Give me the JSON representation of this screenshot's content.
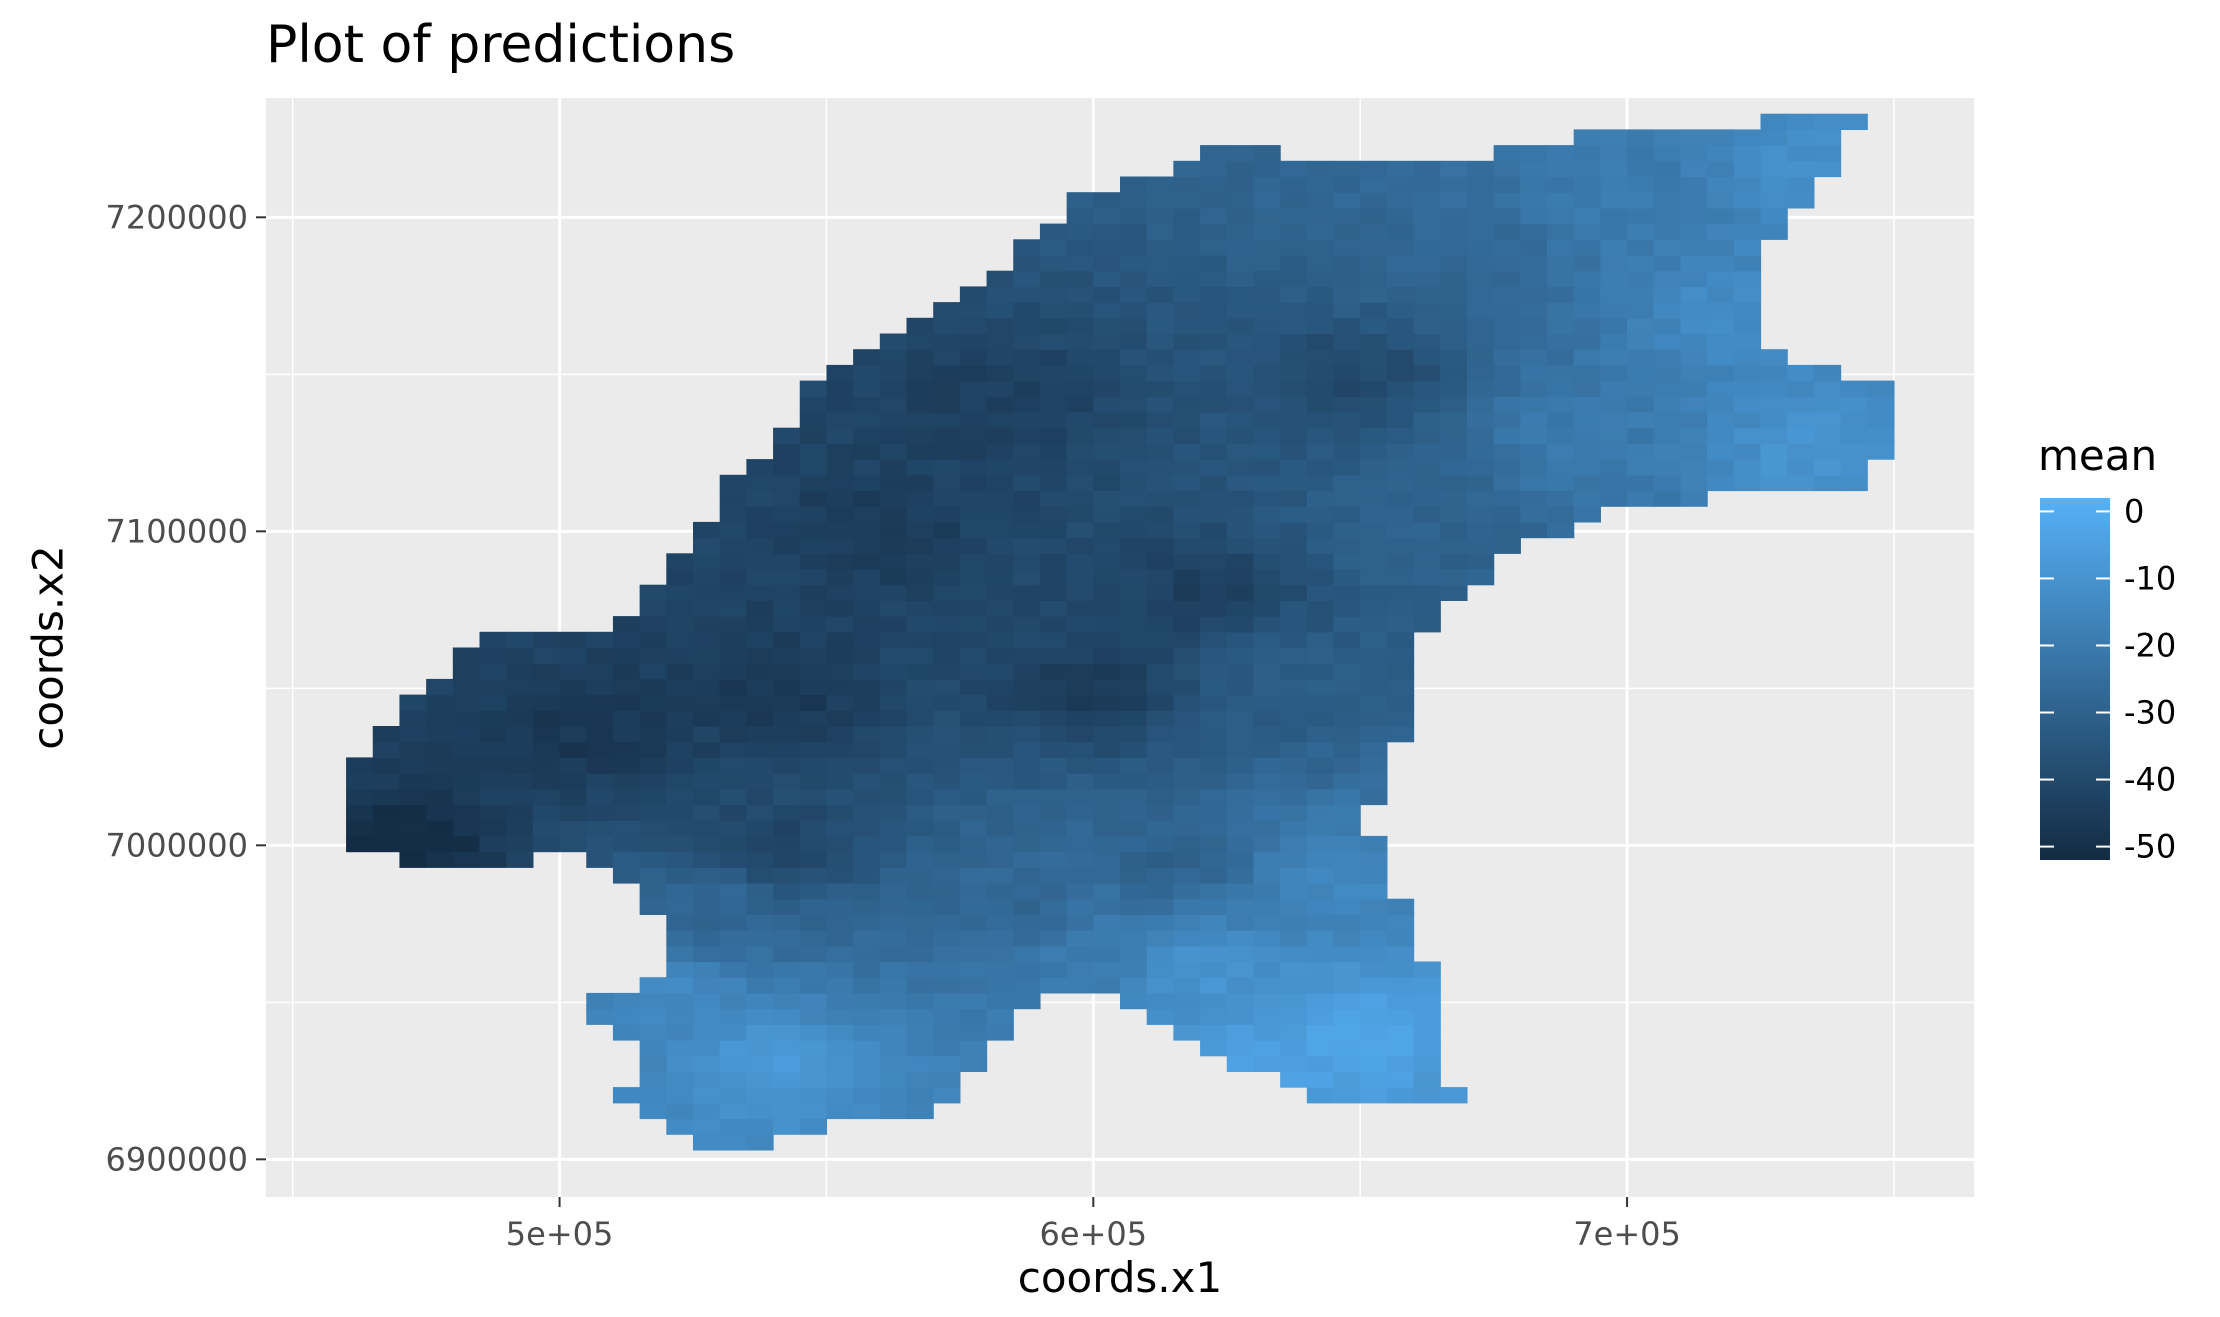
{
  "chart_data": {
    "type": "heatmap",
    "title": "Plot of predictions",
    "xlabel": "coords.x1",
    "ylabel": "coords.x2",
    "xlim": [
      445000,
      765000
    ],
    "ylim": [
      6888000,
      7238000
    ],
    "x_ticks": [
      500000,
      600000,
      700000
    ],
    "x_tick_labels": [
      "5e+05",
      "6e+05",
      "7e+05"
    ],
    "y_ticks": [
      6900000,
      7000000,
      7100000,
      7200000
    ],
    "y_tick_labels": [
      "6900000",
      "7000000",
      "7100000",
      "7200000"
    ],
    "grid": true,
    "cell_size": 5000,
    "legend": {
      "title": "mean",
      "position": "right",
      "range": [
        -52,
        2
      ],
      "breaks": [
        0,
        -10,
        -20,
        -30,
        -40,
        -50
      ],
      "break_labels": [
        "0",
        "-10",
        "-20",
        "-30",
        "-40",
        "-50"
      ],
      "low_color": "#132B43",
      "high_color": "#56B1F7"
    },
    "region_outline": [
      [
        460000,
        7000000
      ],
      [
        476000,
        6993000
      ],
      [
        492000,
        6994000
      ],
      [
        505000,
        6998000
      ],
      [
        515000,
        6985000
      ],
      [
        522000,
        6972000
      ],
      [
        516000,
        6955000
      ],
      [
        503000,
        6950000
      ],
      [
        515000,
        6938000
      ],
      [
        511000,
        6917000
      ],
      [
        522000,
        6907000
      ],
      [
        533000,
        6903000
      ],
      [
        556000,
        6912000
      ],
      [
        571000,
        6916000
      ],
      [
        579000,
        6930000
      ],
      [
        590000,
        6951000
      ],
      [
        601000,
        6954000
      ],
      [
        614000,
        6943000
      ],
      [
        627000,
        6929000
      ],
      [
        645000,
        6918000
      ],
      [
        668000,
        6917000
      ],
      [
        665000,
        6945000
      ],
      [
        661000,
        6970000
      ],
      [
        655000,
        6992000
      ],
      [
        651000,
        7008000
      ],
      [
        657000,
        7027000
      ],
      [
        660000,
        7050000
      ],
      [
        661000,
        7065000
      ],
      [
        668000,
        7080000
      ],
      [
        682000,
        7097000
      ],
      [
        702000,
        7108000
      ],
      [
        725000,
        7112000
      ],
      [
        744000,
        7114000
      ],
      [
        752000,
        7130000
      ],
      [
        747000,
        7148000
      ],
      [
        727000,
        7156000
      ],
      [
        723000,
        7177000
      ],
      [
        730000,
        7200000
      ],
      [
        739000,
        7216000
      ],
      [
        745000,
        7233000
      ],
      [
        728000,
        7231000
      ],
      [
        692000,
        7226000
      ],
      [
        664000,
        7218000
      ],
      [
        642000,
        7216000
      ],
      [
        625000,
        7225000
      ],
      [
        612000,
        7214000
      ],
      [
        598000,
        7208000
      ],
      [
        590000,
        7194000
      ],
      [
        578000,
        7178000
      ],
      [
        566000,
        7166000
      ],
      [
        550000,
        7151000
      ],
      [
        541000,
        7132000
      ],
      [
        530000,
        7111000
      ],
      [
        520000,
        7087000
      ],
      [
        511000,
        7070000
      ],
      [
        488000,
        7068000
      ],
      [
        472000,
        7047000
      ],
      [
        461000,
        7026000
      ]
    ],
    "value_field": [
      {
        "x": 735000,
        "y": 7215000,
        "value": -12
      },
      {
        "x": 720000,
        "y": 7170000,
        "value": -13
      },
      {
        "x": 735000,
        "y": 7125000,
        "value": -10
      },
      {
        "x": 700000,
        "y": 7205000,
        "value": -20
      },
      {
        "x": 690000,
        "y": 7130000,
        "value": -20
      },
      {
        "x": 670000,
        "y": 7185000,
        "value": -28
      },
      {
        "x": 660000,
        "y": 7100000,
        "value": -30
      },
      {
        "x": 650000,
        "y": 7150000,
        "value": -40
      },
      {
        "x": 635000,
        "y": 7055000,
        "value": -32
      },
      {
        "x": 620000,
        "y": 7080000,
        "value": -44
      },
      {
        "x": 600000,
        "y": 7050000,
        "value": -45
      },
      {
        "x": 580000,
        "y": 7140000,
        "value": -44
      },
      {
        "x": 560000,
        "y": 7100000,
        "value": -45
      },
      {
        "x": 540000,
        "y": 7050000,
        "value": -47
      },
      {
        "x": 505000,
        "y": 7035000,
        "value": -47
      },
      {
        "x": 470000,
        "y": 6997000,
        "value": -52
      },
      {
        "x": 540000,
        "y": 7000000,
        "value": -42
      },
      {
        "x": 585000,
        "y": 6980000,
        "value": -28
      },
      {
        "x": 615000,
        "y": 6995000,
        "value": -30
      },
      {
        "x": 645000,
        "y": 6990000,
        "value": -15
      },
      {
        "x": 650000,
        "y": 6940000,
        "value": -3
      },
      {
        "x": 630000,
        "y": 6930000,
        "value": -4
      },
      {
        "x": 620000,
        "y": 6960000,
        "value": -10
      },
      {
        "x": 540000,
        "y": 6930000,
        "value": -8
      },
      {
        "x": 520000,
        "y": 6950000,
        "value": -14
      },
      {
        "x": 530000,
        "y": 6980000,
        "value": -28
      },
      {
        "x": 600000,
        "y": 6965000,
        "value": -20
      }
    ]
  }
}
